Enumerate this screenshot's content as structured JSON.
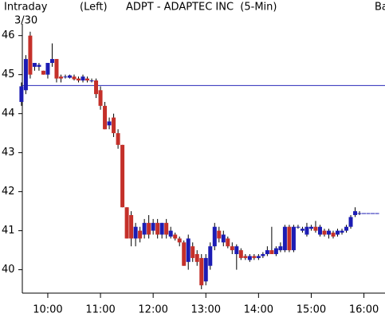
{
  "chart_data": {
    "type": "candlestick",
    "period": "Intraday",
    "axis_side": "(Left)",
    "title": "ADPT - ADAPTEC INC  (5-Min)",
    "date": "3/30",
    "cut_text": "Ba",
    "x": [
      570,
      575,
      580,
      585,
      590,
      595,
      600,
      605,
      610,
      615,
      620,
      625,
      630,
      635,
      640,
      645,
      650,
      655,
      660,
      665,
      670,
      675,
      680,
      685,
      690,
      695,
      700,
      705,
      710,
      715,
      720,
      725,
      730,
      735,
      740,
      745,
      750,
      755,
      760,
      765,
      770,
      775,
      780,
      785,
      790,
      795,
      800,
      805,
      810,
      815,
      820,
      825,
      830,
      835,
      840,
      845,
      850,
      855,
      860,
      865,
      870,
      875,
      880,
      885,
      890,
      895,
      900,
      905,
      910,
      915,
      920,
      925,
      930,
      935,
      940,
      945,
      950,
      955,
      960,
      965,
      970,
      975
    ],
    "open": [
      44.3,
      44.6,
      46.0,
      45.2,
      45.2,
      45.1,
      45.0,
      45.3,
      45.4,
      44.95,
      44.95,
      44.92,
      44.95,
      44.9,
      44.85,
      44.9,
      44.85,
      44.85,
      44.6,
      44.2,
      43.7,
      43.9,
      43.5,
      43.2,
      41.6,
      41.4,
      40.8,
      41.0,
      40.9,
      41.2,
      41.0,
      41.2,
      40.9,
      41.2,
      40.85,
      40.9,
      40.8,
      40.7,
      40.2,
      40.6,
      40.4,
      40.3,
      39.7,
      40.1,
      40.6,
      41.0,
      40.7,
      40.8,
      40.6,
      40.4,
      40.5,
      40.35,
      40.25,
      40.35,
      40.3,
      40.35,
      40.4,
      40.5,
      40.4,
      40.5,
      40.5,
      41.1,
      40.5,
      41.1,
      41.0,
      40.9,
      41.05,
      41.1,
      40.9,
      41.0,
      40.9,
      40.95,
      40.9,
      40.95,
      41.0,
      41.1,
      41.4,
      41.45,
      41.45,
      41.45,
      41.45,
      41.45
    ],
    "high": [
      44.8,
      45.5,
      46.1,
      45.3,
      45.3,
      45.1,
      45.3,
      45.8,
      45.4,
      45.0,
      45.0,
      45.0,
      45.0,
      44.95,
      45.0,
      44.95,
      44.9,
      44.9,
      44.7,
      44.3,
      43.9,
      44.0,
      43.6,
      43.2,
      41.6,
      41.5,
      41.2,
      41.1,
      41.3,
      41.4,
      41.3,
      41.3,
      41.2,
      41.3,
      41.1,
      40.95,
      40.85,
      40.75,
      40.9,
      40.7,
      40.5,
      40.4,
      40.4,
      40.7,
      41.2,
      41.1,
      41.0,
      40.85,
      40.7,
      40.65,
      40.55,
      40.4,
      40.4,
      40.4,
      40.4,
      40.45,
      40.6,
      41.1,
      40.6,
      40.7,
      41.15,
      41.15,
      41.15,
      41.15,
      41.1,
      41.2,
      41.15,
      41.25,
      41.15,
      41.05,
      41.05,
      41.0,
      41.05,
      41.05,
      41.15,
      41.4,
      41.6,
      41.5,
      41.45,
      41.45,
      41.45,
      41.45
    ],
    "low": [
      44.2,
      44.5,
      44.9,
      45.1,
      45.1,
      45.0,
      44.9,
      45.2,
      44.8,
      44.8,
      44.9,
      44.9,
      44.85,
      44.8,
      44.8,
      44.8,
      44.8,
      44.4,
      44.1,
      43.6,
      43.6,
      43.4,
      43.1,
      41.6,
      40.8,
      40.6,
      40.6,
      40.7,
      40.8,
      40.8,
      40.9,
      40.8,
      40.8,
      40.8,
      40.8,
      40.75,
      40.6,
      40.1,
      40.0,
      40.2,
      40.1,
      39.5,
      39.6,
      40.0,
      40.5,
      40.7,
      40.6,
      40.55,
      40.4,
      40.0,
      40.25,
      40.25,
      40.2,
      40.25,
      40.25,
      40.3,
      40.35,
      40.4,
      40.35,
      40.45,
      40.45,
      40.45,
      40.45,
      41.05,
      40.95,
      40.85,
      41.0,
      40.95,
      40.85,
      40.85,
      40.8,
      40.8,
      40.85,
      40.9,
      40.95,
      41.05,
      41.35,
      41.4,
      41.45,
      41.45,
      41.45,
      41.45
    ],
    "close": [
      44.7,
      45.4,
      45.0,
      45.3,
      45.25,
      45.0,
      45.3,
      45.4,
      44.9,
      44.9,
      44.95,
      44.98,
      44.88,
      44.85,
      44.95,
      44.85,
      44.85,
      44.5,
      44.2,
      43.6,
      43.8,
      43.5,
      43.2,
      41.6,
      40.8,
      40.8,
      41.1,
      40.8,
      41.2,
      40.9,
      41.2,
      40.9,
      41.2,
      40.9,
      41.0,
      40.8,
      40.7,
      40.1,
      40.8,
      40.3,
      40.2,
      39.6,
      40.3,
      40.6,
      41.1,
      40.8,
      40.9,
      40.6,
      40.5,
      40.6,
      40.3,
      40.3,
      40.35,
      40.3,
      40.35,
      40.4,
      40.5,
      40.4,
      40.55,
      40.6,
      41.1,
      40.5,
      41.1,
      41.1,
      41.05,
      41.1,
      41.1,
      41.0,
      41.1,
      40.9,
      41.0,
      40.85,
      41.0,
      41.0,
      41.1,
      41.35,
      41.5,
      41.45,
      41.45,
      41.45,
      41.45,
      41.45
    ],
    "up_color": "#1c1cb4",
    "down_color": "#c4302a",
    "reference_line": 44.72,
    "reference_color": "#2a2ab8",
    "xlim": [
      571,
      984
    ],
    "xticks": [
      {
        "value": 600,
        "label": "10:00"
      },
      {
        "value": 660,
        "label": "11:00"
      },
      {
        "value": 720,
        "label": "12:00"
      },
      {
        "value": 780,
        "label": "13:00"
      },
      {
        "value": 840,
        "label": "14:00"
      },
      {
        "value": 900,
        "label": "15:00"
      },
      {
        "value": 960,
        "label": "16:00"
      }
    ],
    "ylim": [
      39.4,
      46.3
    ],
    "yticks": [
      40,
      41,
      42,
      43,
      44,
      45,
      46
    ]
  }
}
